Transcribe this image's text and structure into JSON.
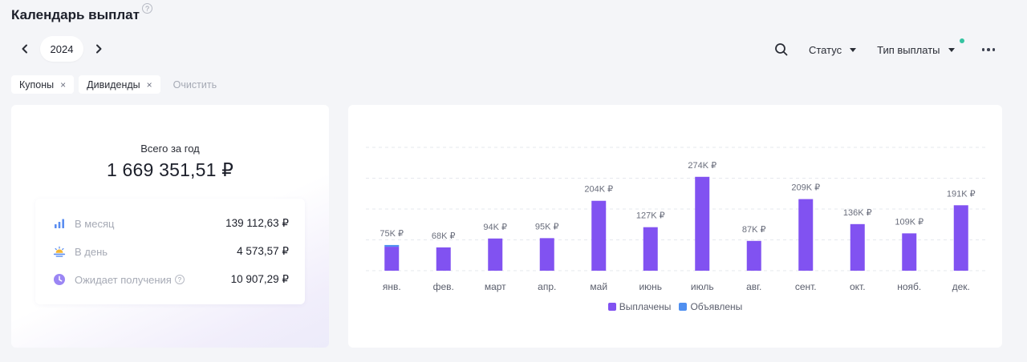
{
  "header": {
    "title": "Календарь выплат",
    "help_glyph": "?"
  },
  "year_nav": {
    "year": "2024",
    "prev_icon": "chevron-left-icon",
    "next_icon": "chevron-right-icon"
  },
  "toolbar": {
    "search_icon": "search-icon",
    "status_label": "Статус",
    "payment_type_label": "Тип выплаты",
    "more_icon": "more-horizontal-icon"
  },
  "filters": {
    "chips": [
      {
        "label": "Купоны",
        "remove_glyph": "×"
      },
      {
        "label": "Дивиденды",
        "remove_glyph": "×"
      }
    ],
    "clear_label": "Очистить"
  },
  "summary": {
    "total_label": "Всего за год",
    "total_value": "1 669 351,51 ₽",
    "rows": [
      {
        "icon": "bar-chart-icon",
        "label": "В месяц",
        "value": "139 112,63 ₽"
      },
      {
        "icon": "sunrise-icon",
        "label": "В день",
        "value": "4 573,57 ₽"
      },
      {
        "icon": "clock-icon",
        "label": "Ожидает получения",
        "value": "10 907,29 ₽",
        "help_glyph": "?"
      }
    ]
  },
  "colors": {
    "paid": "#8152f1",
    "announced": "#4f8ff0",
    "status_dot": "#34c3a1"
  },
  "chart_data": {
    "type": "bar",
    "categories": [
      "янв.",
      "фев.",
      "март",
      "апр.",
      "май",
      "июнь",
      "июль",
      "авг.",
      "сент.",
      "окт.",
      "нояб.",
      "дек."
    ],
    "series": [
      {
        "name": "Выплачены",
        "values": [
          70,
          68,
          94,
          95,
          204,
          127,
          274,
          87,
          209,
          136,
          109,
          191
        ]
      },
      {
        "name": "Объявлены",
        "values": [
          5,
          0,
          0,
          0,
          0,
          0,
          0,
          0,
          0,
          0,
          0,
          0
        ]
      }
    ],
    "data_labels": [
      "75K ₽",
      "68K ₽",
      "94K ₽",
      "95K ₽",
      "204K ₽",
      "127K ₽",
      "274K ₽",
      "87K ₽",
      "209K ₽",
      "136K ₽",
      "109K ₽",
      "191K ₽"
    ],
    "ylim": [
      0,
      360
    ],
    "grid": true,
    "legend_position": "bottom-center"
  }
}
